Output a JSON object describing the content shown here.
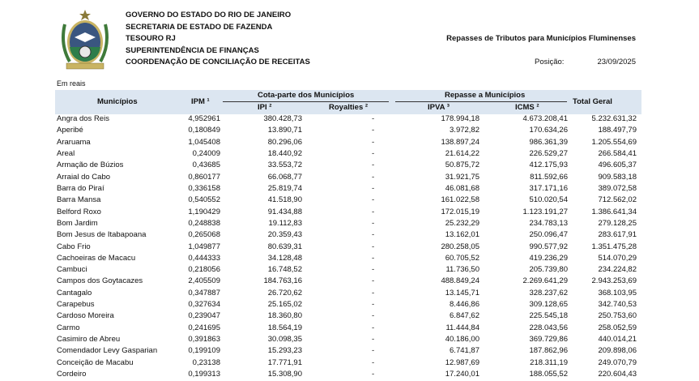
{
  "header": {
    "lines": [
      "GOVERNO DO ESTADO DO RIO DE JANEIRO",
      "SECRETARIA DE ESTADO DE FAZENDA",
      "TESOURO RJ",
      "SUPERINTENDÊNCIA DE FINANÇAS",
      "COORDENAÇÃO DE CONCILIAÇÃO DE RECEITAS"
    ],
    "report_title": "Repasses de Tributos para Municípios Fluminenses",
    "position_label": "Posição:",
    "position_date": "23/09/2025",
    "logo": "rio-de-janeiro-state-coat-of-arms"
  },
  "unit_note": "Em reais",
  "columns": {
    "municipios": "Municípios",
    "ipm": "IPM ¹",
    "group_cota": "Cota-parte dos Municípios",
    "ipi": "IPI ²",
    "royalties": "Royalties ²",
    "group_repasse": "Repasse a Municípios",
    "ipva": "IPVA ³",
    "icms": "ICMS ²",
    "total": "Total Geral"
  },
  "rows": [
    [
      "Angra dos Reis",
      "4,952961",
      "380.428,73",
      "-",
      "178.994,18",
      "4.673.208,41",
      "5.232.631,32"
    ],
    [
      "Aperibé",
      "0,180849",
      "13.890,71",
      "-",
      "3.972,82",
      "170.634,26",
      "188.497,79"
    ],
    [
      "Araruama",
      "1,045408",
      "80.296,06",
      "-",
      "138.897,24",
      "986.361,39",
      "1.205.554,69"
    ],
    [
      "Areal",
      "0,24009",
      "18.440,92",
      "-",
      "21.614,22",
      "226.529,27",
      "266.584,41"
    ],
    [
      "Armação de Búzios",
      "0,43685",
      "33.553,72",
      "-",
      "50.875,72",
      "412.175,93",
      "496.605,37"
    ],
    [
      "Arraial do Cabo",
      "0,860177",
      "66.068,77",
      "-",
      "31.921,75",
      "811.592,66",
      "909.583,18"
    ],
    [
      "Barra do Piraí",
      "0,336158",
      "25.819,74",
      "-",
      "46.081,68",
      "317.171,16",
      "389.072,58"
    ],
    [
      "Barra Mansa",
      "0,540552",
      "41.518,90",
      "-",
      "161.022,58",
      "510.020,54",
      "712.562,02"
    ],
    [
      "Belford Roxo",
      "1,190429",
      "91.434,88",
      "-",
      "172.015,19",
      "1.123.191,27",
      "1.386.641,34"
    ],
    [
      "Bom Jardim",
      "0,248838",
      "19.112,83",
      "-",
      "25.232,29",
      "234.783,13",
      "279.128,25"
    ],
    [
      "Bom Jesus de Itabapoana",
      "0,265068",
      "20.359,43",
      "-",
      "13.162,01",
      "250.096,47",
      "283.617,91"
    ],
    [
      "Cabo Frio",
      "1,049877",
      "80.639,31",
      "-",
      "280.258,05",
      "990.577,92",
      "1.351.475,28"
    ],
    [
      "Cachoeiras de Macacu",
      "0,444333",
      "34.128,48",
      "-",
      "60.705,52",
      "419.236,29",
      "514.070,29"
    ],
    [
      "Cambuci",
      "0,218056",
      "16.748,52",
      "-",
      "11.736,50",
      "205.739,80",
      "234.224,82"
    ],
    [
      "Campos dos Goytacazes",
      "2,405509",
      "184.763,16",
      "-",
      "488.849,24",
      "2.269.641,29",
      "2.943.253,69"
    ],
    [
      "Cantagalo",
      "0,347887",
      "26.720,62",
      "-",
      "13.145,71",
      "328.237,62",
      "368.103,95"
    ],
    [
      "Carapebus",
      "0,327634",
      "25.165,02",
      "-",
      "8.446,86",
      "309.128,65",
      "342.740,53"
    ],
    [
      "Cardoso Moreira",
      "0,239047",
      "18.360,80",
      "-",
      "6.847,62",
      "225.545,18",
      "250.753,60"
    ],
    [
      "Carmo",
      "0,241695",
      "18.564,19",
      "-",
      "11.444,84",
      "228.043,56",
      "258.052,59"
    ],
    [
      "Casimiro de Abreu",
      "0,391863",
      "30.098,35",
      "-",
      "40.186,00",
      "369.729,86",
      "440.014,21"
    ],
    [
      "Comendador Levy Gasparian",
      "0,199109",
      "15.293,23",
      "-",
      "6.741,87",
      "187.862,96",
      "209.898,06"
    ],
    [
      "Conceição de Macabu",
      "0,23138",
      "17.771,91",
      "-",
      "12.987,69",
      "218.311,19",
      "249.070,79"
    ],
    [
      "Cordeiro",
      "0,199313",
      "15.308,90",
      "-",
      "17.240,01",
      "188.055,52",
      "220.604,43"
    ]
  ]
}
